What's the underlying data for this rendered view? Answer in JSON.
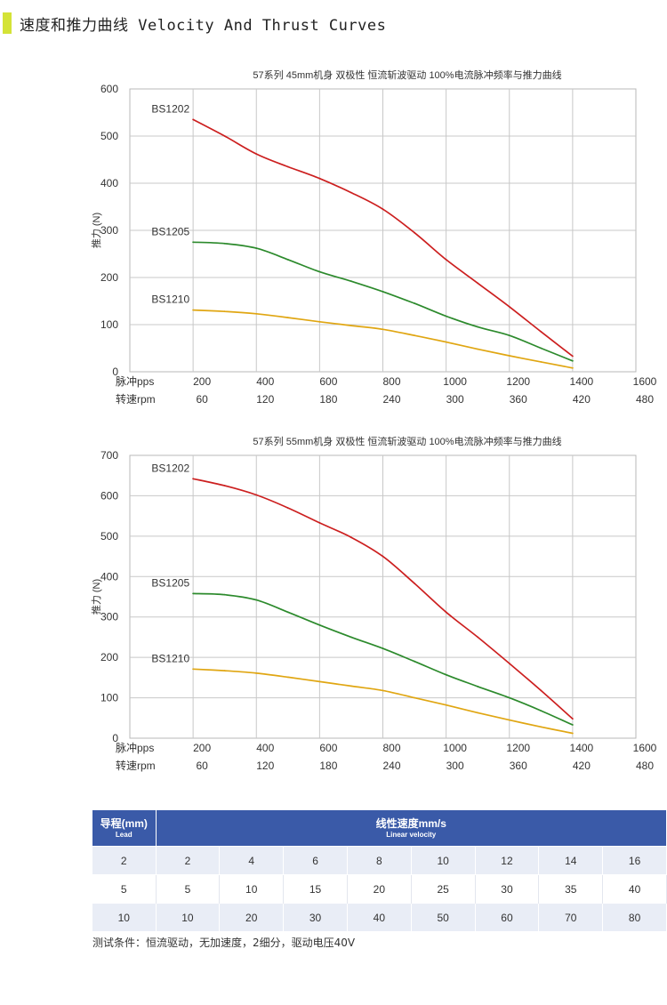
{
  "header": {
    "title": "速度和推力曲线 Velocity And Thrust Curves",
    "accent_color": "#d4e337"
  },
  "chart_data": [
    {
      "type": "line",
      "title": "57系列 45mm机身 双极性 恒流斩波驱动 100%电流脉冲频率与推力曲线",
      "ylabel": "推力 (N)",
      "xlabel": "脉冲pps",
      "x2label": "转速rpm",
      "xlim": [
        0,
        1600
      ],
      "ylim": [
        0,
        600
      ],
      "xticks": [
        200,
        400,
        600,
        800,
        1000,
        1200,
        1400,
        1600
      ],
      "x2ticks": [
        60,
        120,
        180,
        240,
        300,
        360,
        420,
        480
      ],
      "yticks": [
        0,
        100,
        200,
        300,
        400,
        500,
        600
      ],
      "grid": true,
      "series": [
        {
          "name": "BS1202",
          "color": "#cc1f1f",
          "x": [
            200,
            300,
            400,
            500,
            600,
            700,
            800,
            900,
            1000,
            1100,
            1200,
            1300,
            1400
          ],
          "y": [
            535,
            500,
            462,
            435,
            410,
            380,
            345,
            295,
            238,
            188,
            138,
            85,
            33
          ]
        },
        {
          "name": "BS1205",
          "color": "#2c8a2c",
          "x": [
            200,
            300,
            400,
            500,
            600,
            700,
            800,
            900,
            1000,
            1100,
            1200,
            1300,
            1400
          ],
          "y": [
            275,
            272,
            262,
            238,
            212,
            192,
            170,
            145,
            118,
            95,
            77,
            50,
            23
          ]
        },
        {
          "name": "BS1210",
          "color": "#e0a612",
          "x": [
            200,
            300,
            400,
            500,
            600,
            700,
            800,
            900,
            1000,
            1100,
            1200,
            1300,
            1400
          ],
          "y": [
            131,
            128,
            123,
            115,
            106,
            98,
            90,
            77,
            63,
            48,
            34,
            21,
            8
          ]
        }
      ]
    },
    {
      "type": "line",
      "title": "57系列 55mm机身 双极性 恒流斩波驱动 100%电流脉冲频率与推力曲线",
      "ylabel": "推力 (N)",
      "xlabel": "脉冲pps",
      "x2label": "转速rpm",
      "xlim": [
        0,
        1600
      ],
      "ylim": [
        0,
        700
      ],
      "xticks": [
        200,
        400,
        600,
        800,
        1000,
        1200,
        1400,
        1600
      ],
      "x2ticks": [
        60,
        120,
        180,
        240,
        300,
        360,
        420,
        480
      ],
      "yticks": [
        0,
        100,
        200,
        300,
        400,
        500,
        600,
        700
      ],
      "grid": true,
      "series": [
        {
          "name": "BS1202",
          "color": "#cc1f1f",
          "x": [
            200,
            300,
            400,
            500,
            600,
            700,
            800,
            900,
            1000,
            1100,
            1200,
            1300,
            1400
          ],
          "y": [
            642,
            625,
            602,
            570,
            533,
            497,
            450,
            383,
            312,
            250,
            185,
            118,
            48
          ]
        },
        {
          "name": "BS1205",
          "color": "#2c8a2c",
          "x": [
            200,
            300,
            400,
            500,
            600,
            700,
            800,
            900,
            1000,
            1100,
            1200,
            1300,
            1400
          ],
          "y": [
            358,
            355,
            342,
            312,
            280,
            250,
            222,
            190,
            157,
            128,
            100,
            68,
            33
          ]
        },
        {
          "name": "BS1210",
          "color": "#e0a612",
          "x": [
            200,
            300,
            400,
            500,
            600,
            700,
            800,
            900,
            1000,
            1100,
            1200,
            1300,
            1400
          ],
          "y": [
            171,
            167,
            161,
            151,
            140,
            129,
            118,
            100,
            82,
            63,
            45,
            28,
            12
          ]
        }
      ]
    }
  ],
  "table": {
    "lead_header": "导程(mm)",
    "lead_header_en": "Lead",
    "velocity_header": "线性速度mm/s",
    "velocity_header_en": "Linear velocity",
    "header_color": "#3a5aa8",
    "rows": [
      {
        "lead": "2",
        "values": [
          "2",
          "4",
          "6",
          "8",
          "10",
          "12",
          "14",
          "16"
        ]
      },
      {
        "lead": "5",
        "values": [
          "5",
          "10",
          "15",
          "20",
          "25",
          "30",
          "35",
          "40"
        ]
      },
      {
        "lead": "10",
        "values": [
          "10",
          "20",
          "30",
          "40",
          "50",
          "60",
          "70",
          "80"
        ]
      }
    ]
  },
  "note": "测试条件：恒流驱动，无加速度，2细分，驱动电压40V"
}
